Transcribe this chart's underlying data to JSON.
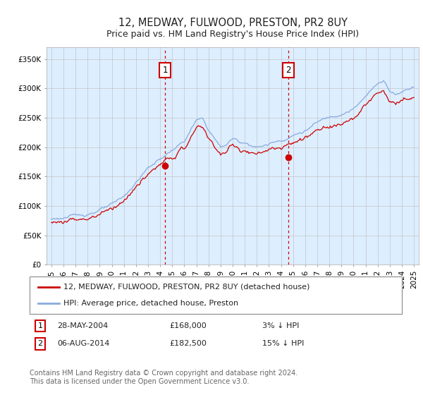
{
  "title": "12, MEDWAY, FULWOOD, PRESTON, PR2 8UY",
  "subtitle": "Price paid vs. HM Land Registry's House Price Index (HPI)",
  "ylabel_ticks": [
    "£0",
    "£50K",
    "£100K",
    "£150K",
    "£200K",
    "£250K",
    "£300K",
    "£350K"
  ],
  "ytick_values": [
    0,
    50000,
    100000,
    150000,
    200000,
    250000,
    300000,
    350000
  ],
  "ylim": [
    0,
    370000
  ],
  "xlim_start": 1994.6,
  "xlim_end": 2025.4,
  "fig_bg_color": "#ffffff",
  "plot_bg_color": "#ddeeff",
  "grid_color": "#bbbbbb",
  "line1_color": "#cc0000",
  "line2_color": "#88aadd",
  "vline_color": "#cc0000",
  "vline1_x": 2004.41,
  "vline2_x": 2014.59,
  "sale1_price": 168000,
  "sale2_price": 182500,
  "legend_line1": "12, MEDWAY, FULWOOD, PRESTON, PR2 8UY (detached house)",
  "legend_line2": "HPI: Average price, detached house, Preston",
  "annotation1_date": "28-MAY-2004",
  "annotation1_price": "£168,000",
  "annotation1_hpi": "3% ↓ HPI",
  "annotation2_date": "06-AUG-2014",
  "annotation2_price": "£182,500",
  "annotation2_hpi": "15% ↓ HPI",
  "footer": "Contains HM Land Registry data © Crown copyright and database right 2024.\nThis data is licensed under the Open Government Licence v3.0.",
  "title_fontsize": 10.5,
  "subtitle_fontsize": 9,
  "tick_fontsize": 7.5,
  "legend_fontsize": 8,
  "annotation_fontsize": 8,
  "footer_fontsize": 7
}
